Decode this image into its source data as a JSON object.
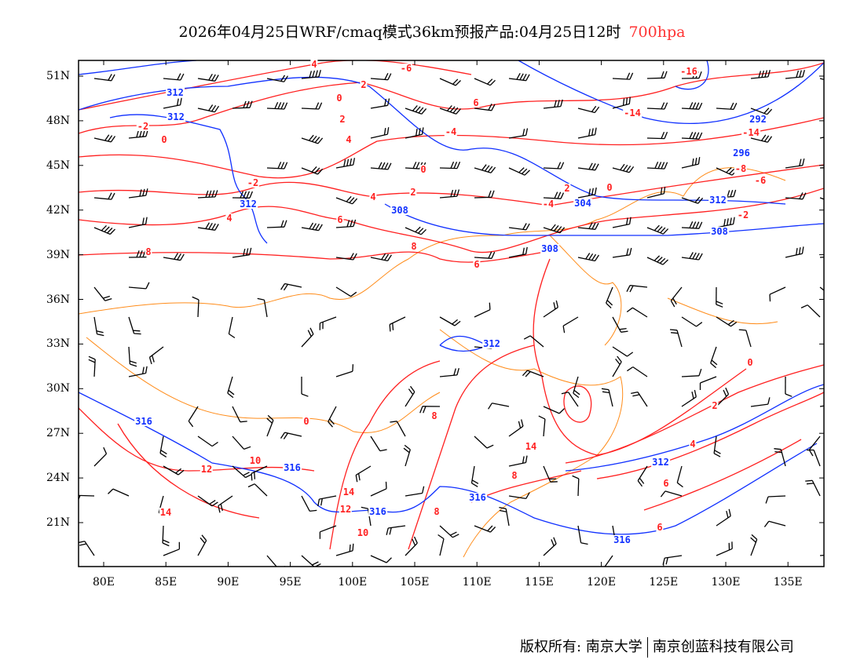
{
  "title": {
    "text": "2026年04月25日WRF/cmaq模式36km预报产品:04月25日12时",
    "level": "700hpa"
  },
  "axes": {
    "lat_labels": [
      "51N",
      "48N",
      "45N",
      "42N",
      "39N",
      "36N",
      "33N",
      "30N",
      "27N",
      "24N",
      "21N"
    ],
    "lon_labels": [
      "80E",
      "85E",
      "90E",
      "95E",
      "100E",
      "105E",
      "110E",
      "115E",
      "120E",
      "125E",
      "130E",
      "135E"
    ]
  },
  "temperature_labels": [
    "4",
    "-6",
    "2",
    "0",
    "-2",
    "2",
    "0",
    "4",
    "-4",
    "6",
    "-2",
    "0",
    "2",
    "4",
    "4",
    "6",
    "8",
    "8",
    "6",
    "-4",
    "2",
    "0",
    "-16",
    "-14",
    "-14",
    "-8",
    "-6",
    "-2",
    "0",
    "2",
    "4",
    "6",
    "6",
    "8",
    "8",
    "14",
    "10",
    "12",
    "14",
    "14",
    "12",
    "10",
    "8",
    "0"
  ],
  "height_labels": [
    "312",
    "312",
    "312",
    "308",
    "304",
    "308",
    "308",
    "312",
    "312",
    "316",
    "316",
    "316",
    "316",
    "312",
    "316",
    "292",
    "296"
  ],
  "colors": {
    "temperature": "#ff2020",
    "height": "#1030ff",
    "boundary": "#ff8c1a",
    "barb": "#000000"
  },
  "footer": {
    "copyright": "版权所有: 南京大学",
    "company": "南京创蓝科技有限公司"
  }
}
